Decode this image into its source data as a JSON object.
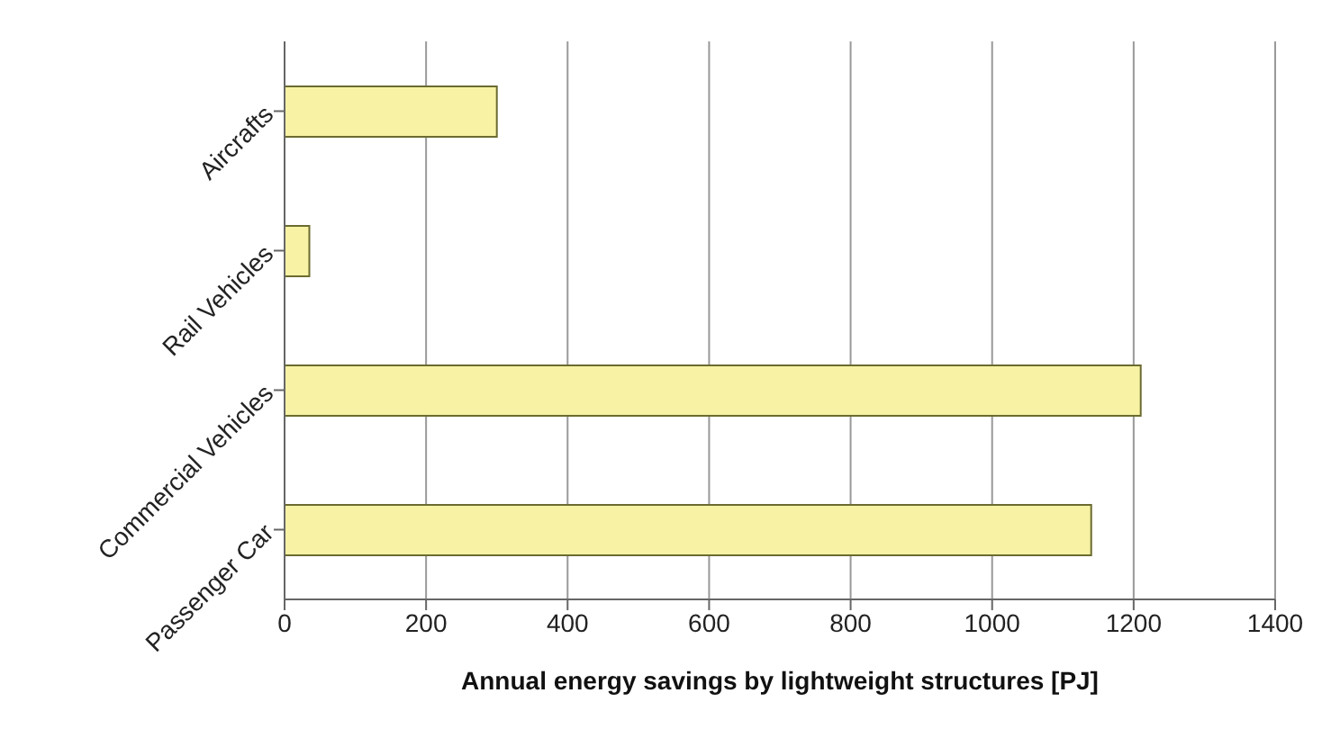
{
  "chart_data": {
    "type": "bar",
    "orientation": "horizontal",
    "xlabel": "Annual energy savings by lightweight structures [PJ]",
    "categories": [
      "Aircrafts",
      "Rail Vehicles",
      "Commercial Vehicles",
      "Passenger Car"
    ],
    "values": [
      300,
      35,
      1210,
      1140
    ],
    "color": "#f7f2a4",
    "xlim": [
      0,
      1400
    ],
    "xticks": [
      0,
      200,
      400,
      600,
      800,
      1000,
      1200,
      1400
    ],
    "grid": "x"
  }
}
